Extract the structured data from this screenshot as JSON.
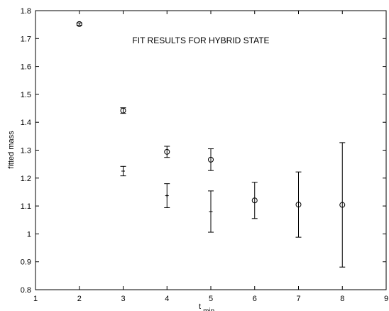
{
  "chart_data": {
    "type": "scatter",
    "title": "FIT RESULTS FOR HYBRID STATE",
    "xlabel": "t",
    "xlabel_subscript": "min",
    "ylabel": "fitted mass",
    "xlim": [
      1,
      9
    ],
    "ylim": [
      0.8,
      1.8
    ],
    "xticks": [
      1,
      2,
      3,
      4,
      5,
      6,
      7,
      8,
      9
    ],
    "yticks": [
      0.8,
      0.9,
      1,
      1.1,
      1.2,
      1.3,
      1.4,
      1.5,
      1.6,
      1.7,
      1.8
    ],
    "xtick_labels": [
      "1",
      "2",
      "3",
      "4",
      "5",
      "6",
      "7",
      "8",
      "9"
    ],
    "ytick_labels": [
      "0.8",
      "0.9",
      "1",
      "1.1",
      "1.2",
      "1.3",
      "1.4",
      "1.5",
      "1.6",
      "1.7",
      "1.8"
    ],
    "grid": false,
    "series": [
      {
        "marker": "circle",
        "points": [
          {
            "x": 2,
            "y": 1.752,
            "err": 0.004
          },
          {
            "x": 3,
            "y": 1.442,
            "err": 0.01
          },
          {
            "x": 4,
            "y": 1.294,
            "err": 0.02
          },
          {
            "x": 5,
            "y": 1.266,
            "err": 0.039
          },
          {
            "x": 6,
            "y": 1.12,
            "err": 0.065
          },
          {
            "x": 7,
            "y": 1.105,
            "err": 0.117
          },
          {
            "x": 8,
            "y": 1.104,
            "err": 0.223
          }
        ]
      },
      {
        "marker": "plus",
        "points": [
          {
            "x": 3,
            "y": 1.225,
            "err": 0.017
          },
          {
            "x": 4,
            "y": 1.137,
            "err": 0.043
          },
          {
            "x": 5,
            "y": 1.08,
            "err": 0.074
          }
        ]
      }
    ]
  }
}
